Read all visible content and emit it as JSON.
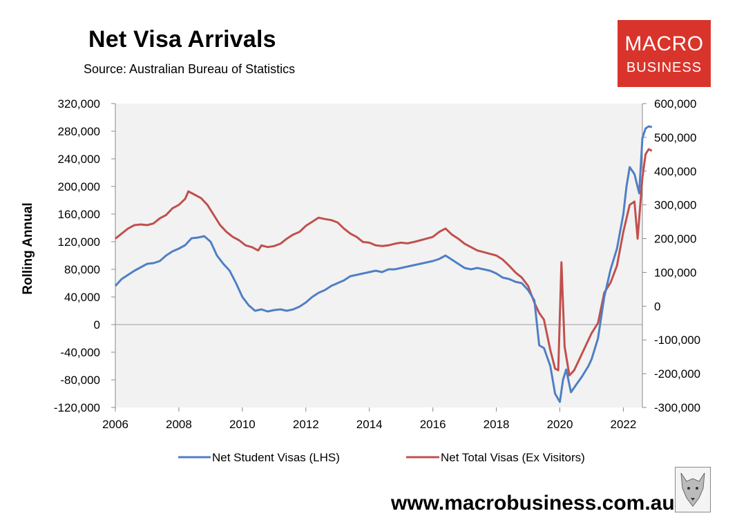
{
  "header": {
    "title": "Net Visa Arrivals",
    "subtitle": "Source: Australian Bureau of Statistics"
  },
  "logo": {
    "line1": "MACRO",
    "line2": "BUSINESS"
  },
  "footer": {
    "website": "www.macrobusiness.com.au"
  },
  "colors": {
    "student": "#4f7fc4",
    "total": "#c0504d",
    "logo_bg": "#d9342b",
    "plot_bg": "#f2f2f2"
  },
  "chart_data": {
    "type": "line",
    "title": "Net Visa Arrivals",
    "ylabel": "Rolling Annual",
    "ylim_left": [
      -120000,
      320000
    ],
    "ylim_right": [
      -300000,
      600000
    ],
    "xlim": [
      2006,
      2022.6
    ],
    "left_ticks": [
      "320,000",
      "280,000",
      "240,000",
      "200,000",
      "160,000",
      "120,000",
      "80,000",
      "40,000",
      "0",
      "-40,000",
      "-80,000",
      "-120,000"
    ],
    "right_ticks": [
      "600,000",
      "500,000",
      "400,000",
      "300,000",
      "200,000",
      "100,000",
      "0",
      "-100,000",
      "-200,000",
      "-300,000"
    ],
    "x_ticks": [
      "2006",
      "2008",
      "2010",
      "2012",
      "2014",
      "2016",
      "2018",
      "2020",
      "2022"
    ],
    "legend_position": "bottom",
    "series": [
      {
        "name": "Net Student Visas (LHS)",
        "axis": "left",
        "points": [
          [
            2006.0,
            56000
          ],
          [
            2006.2,
            66000
          ],
          [
            2006.4,
            72000
          ],
          [
            2006.6,
            78000
          ],
          [
            2006.8,
            83000
          ],
          [
            2007.0,
            88000
          ],
          [
            2007.2,
            89000
          ],
          [
            2007.4,
            92000
          ],
          [
            2007.6,
            100000
          ],
          [
            2007.8,
            106000
          ],
          [
            2008.0,
            110000
          ],
          [
            2008.2,
            115000
          ],
          [
            2008.4,
            125000
          ],
          [
            2008.6,
            126000
          ],
          [
            2008.8,
            128000
          ],
          [
            2009.0,
            120000
          ],
          [
            2009.2,
            100000
          ],
          [
            2009.4,
            88000
          ],
          [
            2009.6,
            78000
          ],
          [
            2009.8,
            60000
          ],
          [
            2010.0,
            40000
          ],
          [
            2010.2,
            28000
          ],
          [
            2010.4,
            20000
          ],
          [
            2010.6,
            22000
          ],
          [
            2010.8,
            19000
          ],
          [
            2011.0,
            21000
          ],
          [
            2011.2,
            22000
          ],
          [
            2011.4,
            20000
          ],
          [
            2011.6,
            22000
          ],
          [
            2011.8,
            26000
          ],
          [
            2012.0,
            32000
          ],
          [
            2012.2,
            40000
          ],
          [
            2012.4,
            46000
          ],
          [
            2012.6,
            50000
          ],
          [
            2012.8,
            56000
          ],
          [
            2013.0,
            60000
          ],
          [
            2013.2,
            64000
          ],
          [
            2013.4,
            70000
          ],
          [
            2013.6,
            72000
          ],
          [
            2013.8,
            74000
          ],
          [
            2014.0,
            76000
          ],
          [
            2014.2,
            78000
          ],
          [
            2014.4,
            76000
          ],
          [
            2014.6,
            80000
          ],
          [
            2014.8,
            80000
          ],
          [
            2015.0,
            82000
          ],
          [
            2015.2,
            84000
          ],
          [
            2015.4,
            86000
          ],
          [
            2015.6,
            88000
          ],
          [
            2015.8,
            90000
          ],
          [
            2016.0,
            92000
          ],
          [
            2016.2,
            95000
          ],
          [
            2016.4,
            100000
          ],
          [
            2016.6,
            94000
          ],
          [
            2016.8,
            88000
          ],
          [
            2017.0,
            82000
          ],
          [
            2017.2,
            80000
          ],
          [
            2017.4,
            82000
          ],
          [
            2017.6,
            80000
          ],
          [
            2017.8,
            78000
          ],
          [
            2018.0,
            74000
          ],
          [
            2018.2,
            68000
          ],
          [
            2018.4,
            66000
          ],
          [
            2018.6,
            62000
          ],
          [
            2018.8,
            60000
          ],
          [
            2019.0,
            50000
          ],
          [
            2019.2,
            35000
          ],
          [
            2019.35,
            -30000
          ],
          [
            2019.5,
            -34000
          ],
          [
            2019.7,
            -60000
          ],
          [
            2019.85,
            -100000
          ],
          [
            2020.0,
            -112000
          ],
          [
            2020.1,
            -80000
          ],
          [
            2020.2,
            -65000
          ],
          [
            2020.35,
            -98000
          ],
          [
            2020.5,
            -88000
          ],
          [
            2020.7,
            -75000
          ],
          [
            2020.9,
            -60000
          ],
          [
            2021.0,
            -50000
          ],
          [
            2021.2,
            -20000
          ],
          [
            2021.4,
            40000
          ],
          [
            2021.6,
            80000
          ],
          [
            2021.8,
            110000
          ],
          [
            2022.0,
            160000
          ],
          [
            2022.1,
            200000
          ],
          [
            2022.2,
            228000
          ],
          [
            2022.35,
            218000
          ],
          [
            2022.5,
            190000
          ],
          [
            2022.6,
            270000
          ],
          [
            2022.7,
            284000
          ],
          [
            2022.8,
            287000
          ],
          [
            2022.9,
            286000
          ]
        ]
      },
      {
        "name": "Net Total Visas (Ex Visitors)",
        "axis": "right",
        "points": [
          [
            2006.0,
            200000
          ],
          [
            2006.2,
            215000
          ],
          [
            2006.4,
            230000
          ],
          [
            2006.6,
            240000
          ],
          [
            2006.8,
            242000
          ],
          [
            2007.0,
            240000
          ],
          [
            2007.2,
            245000
          ],
          [
            2007.4,
            260000
          ],
          [
            2007.6,
            270000
          ],
          [
            2007.8,
            290000
          ],
          [
            2008.0,
            300000
          ],
          [
            2008.2,
            318000
          ],
          [
            2008.3,
            340000
          ],
          [
            2008.5,
            330000
          ],
          [
            2008.7,
            320000
          ],
          [
            2008.9,
            300000
          ],
          [
            2009.1,
            270000
          ],
          [
            2009.3,
            240000
          ],
          [
            2009.5,
            220000
          ],
          [
            2009.7,
            205000
          ],
          [
            2009.9,
            195000
          ],
          [
            2010.1,
            180000
          ],
          [
            2010.3,
            175000
          ],
          [
            2010.5,
            165000
          ],
          [
            2010.6,
            180000
          ],
          [
            2010.8,
            175000
          ],
          [
            2011.0,
            178000
          ],
          [
            2011.2,
            185000
          ],
          [
            2011.4,
            200000
          ],
          [
            2011.6,
            212000
          ],
          [
            2011.8,
            220000
          ],
          [
            2012.0,
            238000
          ],
          [
            2012.2,
            250000
          ],
          [
            2012.4,
            262000
          ],
          [
            2012.6,
            258000
          ],
          [
            2012.8,
            255000
          ],
          [
            2013.0,
            248000
          ],
          [
            2013.2,
            230000
          ],
          [
            2013.4,
            215000
          ],
          [
            2013.6,
            205000
          ],
          [
            2013.8,
            190000
          ],
          [
            2014.0,
            188000
          ],
          [
            2014.2,
            180000
          ],
          [
            2014.4,
            178000
          ],
          [
            2014.6,
            180000
          ],
          [
            2014.8,
            185000
          ],
          [
            2015.0,
            188000
          ],
          [
            2015.2,
            186000
          ],
          [
            2015.4,
            190000
          ],
          [
            2015.6,
            195000
          ],
          [
            2015.8,
            200000
          ],
          [
            2016.0,
            205000
          ],
          [
            2016.2,
            220000
          ],
          [
            2016.4,
            230000
          ],
          [
            2016.6,
            212000
          ],
          [
            2016.8,
            200000
          ],
          [
            2017.0,
            185000
          ],
          [
            2017.2,
            175000
          ],
          [
            2017.4,
            165000
          ],
          [
            2017.6,
            160000
          ],
          [
            2017.8,
            155000
          ],
          [
            2018.0,
            150000
          ],
          [
            2018.2,
            138000
          ],
          [
            2018.4,
            120000
          ],
          [
            2018.6,
            100000
          ],
          [
            2018.8,
            85000
          ],
          [
            2019.0,
            60000
          ],
          [
            2019.2,
            10000
          ],
          [
            2019.35,
            -20000
          ],
          [
            2019.5,
            -40000
          ],
          [
            2019.7,
            -130000
          ],
          [
            2019.85,
            -185000
          ],
          [
            2019.95,
            -190000
          ],
          [
            2020.05,
            130000
          ],
          [
            2020.15,
            -120000
          ],
          [
            2020.3,
            -205000
          ],
          [
            2020.45,
            -190000
          ],
          [
            2020.6,
            -160000
          ],
          [
            2020.8,
            -120000
          ],
          [
            2021.0,
            -80000
          ],
          [
            2021.2,
            -50000
          ],
          [
            2021.4,
            40000
          ],
          [
            2021.6,
            70000
          ],
          [
            2021.8,
            120000
          ],
          [
            2022.0,
            220000
          ],
          [
            2022.1,
            260000
          ],
          [
            2022.2,
            300000
          ],
          [
            2022.35,
            310000
          ],
          [
            2022.45,
            200000
          ],
          [
            2022.6,
            380000
          ],
          [
            2022.7,
            450000
          ],
          [
            2022.8,
            465000
          ],
          [
            2022.9,
            460000
          ]
        ]
      }
    ]
  }
}
